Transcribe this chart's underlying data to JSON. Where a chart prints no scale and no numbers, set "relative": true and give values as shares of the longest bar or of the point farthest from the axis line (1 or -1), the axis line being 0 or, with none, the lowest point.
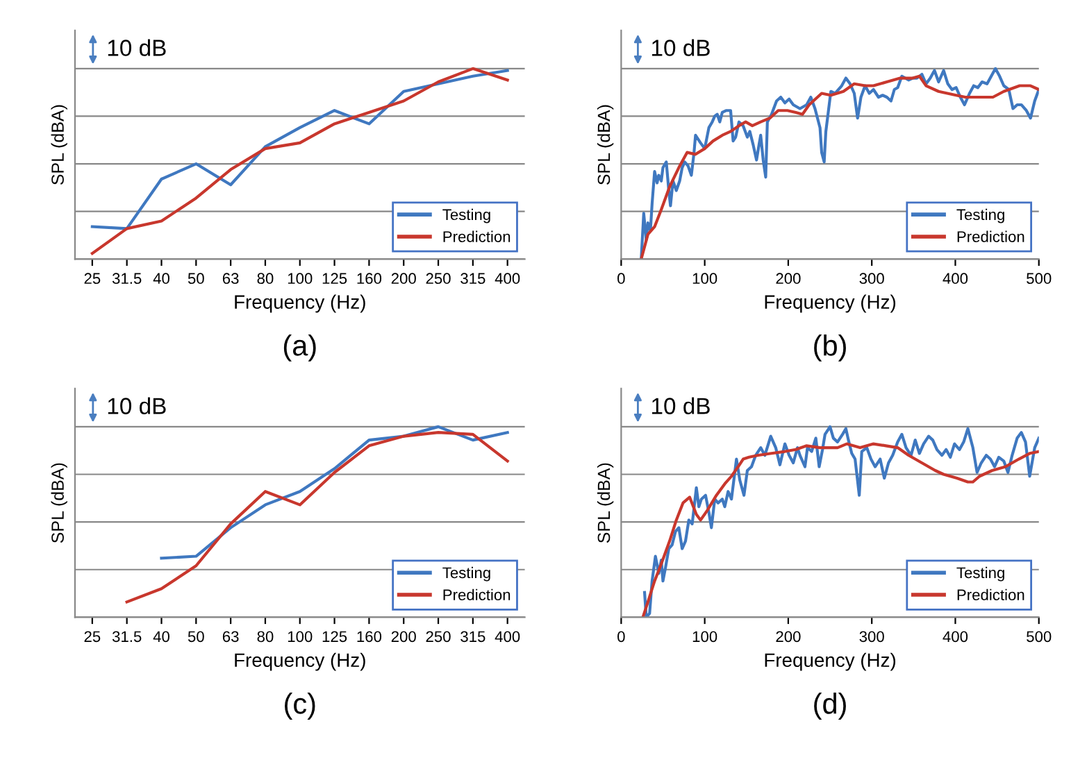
{
  "chart_data": [
    {
      "type": "line",
      "relative": true,
      "xlabel": "Frequency (Hz)",
      "ylabel": "SPL (dBA)",
      "annotations": [
        "10 dB",
        "(a)"
      ],
      "legend": "bottom right",
      "grid": "y",
      "categories": [
        "25",
        "31.5",
        "40",
        "50",
        "63",
        "80",
        "100",
        "125",
        "160",
        "200",
        "250",
        "315",
        "400"
      ],
      "series": [
        {
          "name": "Testing",
          "color": "#3f78c0",
          "values": [
            0.17,
            0.16,
            0.42,
            0.5,
            0.39,
            0.59,
            0.69,
            0.78,
            0.71,
            0.88,
            0.92,
            0.96,
            0.99
          ]
        },
        {
          "name": "Prediction",
          "color": "#c8372d",
          "values": [
            0.03,
            0.16,
            0.2,
            0.32,
            0.47,
            0.58,
            0.61,
            0.71,
            0.77,
            0.83,
            0.93,
            1.0,
            0.94
          ]
        }
      ]
    },
    {
      "type": "line",
      "relative": true,
      "xlabel": "Frequency (Hz)",
      "ylabel": "SPL (dBA)",
      "annotations": [
        "10 dB",
        "(b)"
      ],
      "legend": "bottom right",
      "grid": "y",
      "xlim": [
        0,
        500
      ],
      "xticks": [
        0,
        100,
        200,
        300,
        400,
        500
      ],
      "series": [
        {
          "name": "Testing",
          "color": "#3f78c0",
          "x": [
            24,
            27,
            30,
            32,
            35,
            37,
            40,
            43,
            45,
            48,
            50,
            54,
            57,
            59,
            62,
            66,
            70,
            73,
            76,
            80,
            84,
            87,
            89,
            95,
            100,
            105,
            109,
            112,
            115,
            118,
            121,
            126,
            131,
            134,
            137,
            141,
            146,
            151,
            154,
            158,
            162,
            165,
            167,
            170,
            173,
            175,
            180,
            186,
            191,
            196,
            201,
            206,
            214,
            222,
            227,
            232,
            238,
            240,
            243,
            245,
            251,
            256,
            264,
            269,
            274,
            279,
            283,
            287,
            292,
            297,
            302,
            308,
            313,
            318,
            323,
            327,
            331,
            336,
            344,
            349,
            354,
            360,
            365,
            370,
            375,
            380,
            386,
            391,
            396,
            401,
            406,
            411,
            417,
            422,
            427,
            432,
            438,
            443,
            448,
            453,
            458,
            464,
            469,
            474,
            479,
            485,
            490,
            495,
            500
          ],
          "values": [
            0,
            0.24,
            0.1,
            0.19,
            0.15,
            0.29,
            0.46,
            0.4,
            0.44,
            0.41,
            0.48,
            0.51,
            0.36,
            0.28,
            0.41,
            0.36,
            0.41,
            0.48,
            0.51,
            0.49,
            0.44,
            0.55,
            0.65,
            0.61,
            0.58,
            0.69,
            0.72,
            0.75,
            0.76,
            0.72,
            0.77,
            0.78,
            0.78,
            0.62,
            0.64,
            0.72,
            0.7,
            0.64,
            0.67,
            0.6,
            0.52,
            0.6,
            0.65,
            0.52,
            0.43,
            0.72,
            0.76,
            0.83,
            0.85,
            0.82,
            0.84,
            0.81,
            0.79,
            0.81,
            0.85,
            0.79,
            0.69,
            0.56,
            0.51,
            0.67,
            0.88,
            0.87,
            0.91,
            0.95,
            0.92,
            0.87,
            0.74,
            0.85,
            0.91,
            0.87,
            0.89,
            0.85,
            0.86,
            0.85,
            0.83,
            0.89,
            0.9,
            0.96,
            0.94,
            0.95,
            0.95,
            0.97,
            0.92,
            0.95,
            0.99,
            0.93,
            0.99,
            0.92,
            0.89,
            0.9,
            0.85,
            0.81,
            0.87,
            0.91,
            0.9,
            0.93,
            0.92,
            0.96,
            1.0,
            0.96,
            0.91,
            0.89,
            0.79,
            0.81,
            0.81,
            0.78,
            0.74,
            0.83,
            0.89
          ]
        },
        {
          "name": "Prediction",
          "color": "#c8372d",
          "x": [
            24,
            32,
            40,
            48,
            58,
            69,
            79,
            89,
            100,
            110,
            121,
            131,
            141,
            149,
            157,
            167,
            178,
            188,
            199,
            209,
            217,
            225,
            240,
            251,
            266,
            279,
            292,
            302,
            318,
            334,
            349,
            357,
            365,
            380,
            401,
            412,
            427,
            445,
            458,
            477,
            490,
            500
          ],
          "values": [
            0,
            0.13,
            0.17,
            0.26,
            0.38,
            0.48,
            0.56,
            0.55,
            0.58,
            0.62,
            0.65,
            0.67,
            0.7,
            0.72,
            0.7,
            0.72,
            0.74,
            0.78,
            0.78,
            0.77,
            0.76,
            0.81,
            0.87,
            0.86,
            0.88,
            0.92,
            0.91,
            0.91,
            0.93,
            0.95,
            0.95,
            0.96,
            0.91,
            0.88,
            0.86,
            0.85,
            0.85,
            0.85,
            0.88,
            0.91,
            0.91,
            0.89
          ]
        }
      ]
    },
    {
      "type": "line",
      "relative": true,
      "xlabel": "Frequency (Hz)",
      "ylabel": "SPL (dBA)",
      "annotations": [
        "10 dB",
        "(c)"
      ],
      "legend": "bottom right",
      "grid": "y",
      "categories": [
        "25",
        "31.5",
        "40",
        "50",
        "63",
        "80",
        "100",
        "125",
        "160",
        "200",
        "250",
        "315",
        "400"
      ],
      "series": [
        {
          "name": "Testing",
          "color": "#3f78c0",
          "values": [
            null,
            null,
            0.31,
            0.32,
            0.47,
            0.59,
            0.66,
            0.78,
            0.93,
            0.95,
            1.0,
            0.93,
            0.97
          ]
        },
        {
          "name": "Prediction",
          "color": "#c8372d",
          "values": [
            null,
            0.08,
            0.15,
            0.27,
            0.49,
            0.66,
            0.59,
            0.76,
            0.9,
            0.95,
            0.97,
            0.96,
            0.82
          ]
        }
      ]
    },
    {
      "type": "line",
      "relative": true,
      "xlabel": "Frequency (Hz)",
      "ylabel": "SPL (dBA)",
      "annotations": [
        "10 dB",
        "(d)"
      ],
      "legend": "bottom right",
      "grid": "y",
      "xlim": [
        0,
        500
      ],
      "xticks": [
        0,
        100,
        200,
        300,
        400,
        500
      ],
      "series": [
        {
          "name": "Testing",
          "color": "#3f78c0",
          "x": [
            28,
            30,
            34,
            37,
            41,
            45,
            48,
            50,
            53,
            57,
            61,
            65,
            69,
            73,
            77,
            81,
            85,
            90,
            93,
            96,
            101,
            105,
            108,
            112,
            116,
            121,
            124,
            128,
            132,
            138,
            142,
            147,
            151,
            156,
            161,
            167,
            172,
            179,
            185,
            190,
            196,
            201,
            206,
            211,
            214,
            220,
            223,
            228,
            233,
            237,
            241,
            244,
            250,
            254,
            259,
            265,
            269,
            272,
            276,
            280,
            285,
            288,
            294,
            299,
            304,
            310,
            315,
            320,
            325,
            331,
            336,
            341,
            347,
            352,
            357,
            362,
            368,
            373,
            378,
            384,
            389,
            394,
            399,
            405,
            410,
            415,
            421,
            426,
            431,
            437,
            442,
            447,
            452,
            458,
            463,
            468,
            474,
            479,
            484,
            489,
            495,
            500
          ],
          "values": [
            0.13,
            0,
            0.02,
            0.19,
            0.32,
            0.23,
            0.3,
            0.19,
            0.26,
            0.36,
            0.38,
            0.45,
            0.47,
            0.36,
            0.4,
            0.51,
            0.49,
            0.68,
            0.58,
            0.62,
            0.64,
            0.55,
            0.47,
            0.62,
            0.6,
            0.62,
            0.58,
            0.66,
            0.62,
            0.83,
            0.72,
            0.64,
            0.77,
            0.79,
            0.85,
            0.89,
            0.85,
            0.95,
            0.89,
            0.8,
            0.91,
            0.85,
            0.81,
            0.89,
            0.85,
            0.79,
            0.89,
            0.87,
            0.94,
            0.79,
            0.88,
            0.96,
            1.0,
            0.94,
            0.92,
            0.96,
            0.99,
            0.93,
            0.86,
            0.83,
            0.64,
            0.87,
            0.89,
            0.83,
            0.79,
            0.83,
            0.73,
            0.81,
            0.85,
            0.92,
            0.96,
            0.89,
            0.85,
            0.93,
            0.86,
            0.91,
            0.95,
            0.93,
            0.88,
            0.85,
            0.88,
            0.84,
            0.91,
            0.88,
            0.92,
            0.99,
            0.89,
            0.76,
            0.81,
            0.85,
            0.83,
            0.79,
            0.84,
            0.82,
            0.76,
            0.85,
            0.94,
            0.97,
            0.92,
            0.74,
            0.89,
            0.94
          ]
        },
        {
          "name": "Prediction",
          "color": "#c8372d",
          "x": [
            26,
            32,
            40,
            48,
            58,
            66,
            74,
            82,
            90,
            95,
            103,
            114,
            124,
            132,
            140,
            146,
            153,
            164,
            180,
            196,
            209,
            222,
            238,
            251,
            259,
            270,
            286,
            302,
            317,
            331,
            344,
            360,
            376,
            386,
            402,
            415,
            421,
            429,
            444,
            460,
            476,
            489,
            500
          ],
          "values": [
            0,
            0.08,
            0.19,
            0.28,
            0.4,
            0.51,
            0.6,
            0.63,
            0.54,
            0.51,
            0.56,
            0.64,
            0.7,
            0.74,
            0.79,
            0.83,
            0.84,
            0.85,
            0.86,
            0.87,
            0.88,
            0.9,
            0.89,
            0.89,
            0.89,
            0.91,
            0.89,
            0.91,
            0.9,
            0.89,
            0.85,
            0.81,
            0.77,
            0.75,
            0.73,
            0.71,
            0.71,
            0.74,
            0.77,
            0.79,
            0.83,
            0.86,
            0.87
          ]
        }
      ]
    }
  ]
}
